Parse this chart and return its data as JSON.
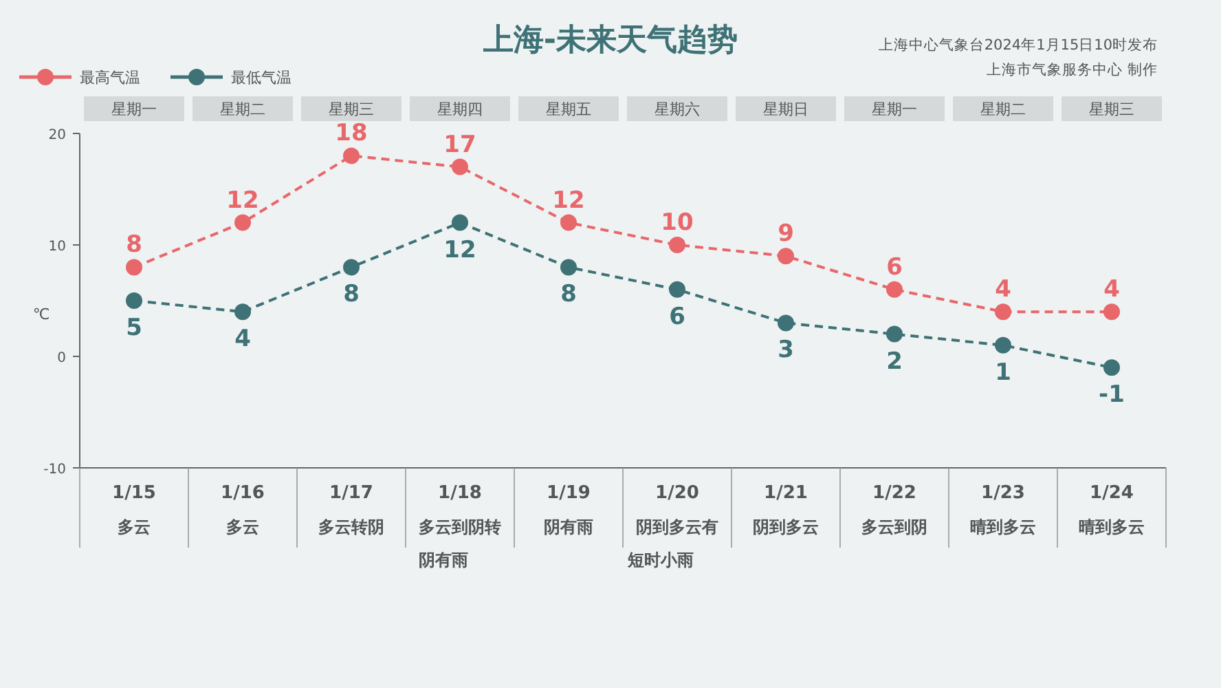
{
  "chart_data": {
    "type": "line",
    "title": "上海-未来天气趋势",
    "ylabel": "℃",
    "categories": [
      "1/15",
      "1/16",
      "1/17",
      "1/18",
      "1/19",
      "1/20",
      "1/21",
      "1/22",
      "1/23",
      "1/24"
    ],
    "series": [
      {
        "name": "最高气温",
        "color": "#e8676b",
        "values": [
          8,
          12,
          18,
          17,
          12,
          10,
          9,
          6,
          4,
          4
        ]
      },
      {
        "name": "最低气温",
        "color": "#3e7276",
        "values": [
          5,
          4,
          8,
          12,
          8,
          6,
          3,
          2,
          1,
          -1
        ]
      }
    ],
    "ylim": [
      -10,
      20
    ],
    "yticks": [
      -10,
      0,
      10,
      20
    ],
    "data_labels": true,
    "legend": "top left",
    "marker": "circle",
    "line_style": "dashed",
    "annotations": [
      "上海中心气象台2024年1月15日10时发布",
      "上海市气象服务中心 制作",
      "星期一",
      "星期二",
      "星期三",
      "星期四",
      "星期五",
      "星期六",
      "星期日",
      "星期一",
      "星期二",
      "星期三",
      "多云",
      "多云",
      "多云转阴",
      "多云到阴转阴有雨",
      "阴有雨",
      "阴到多云有短时小雨",
      "阴到多云",
      "多云到阴",
      "晴到多云",
      "晴到多云"
    ]
  }
}
